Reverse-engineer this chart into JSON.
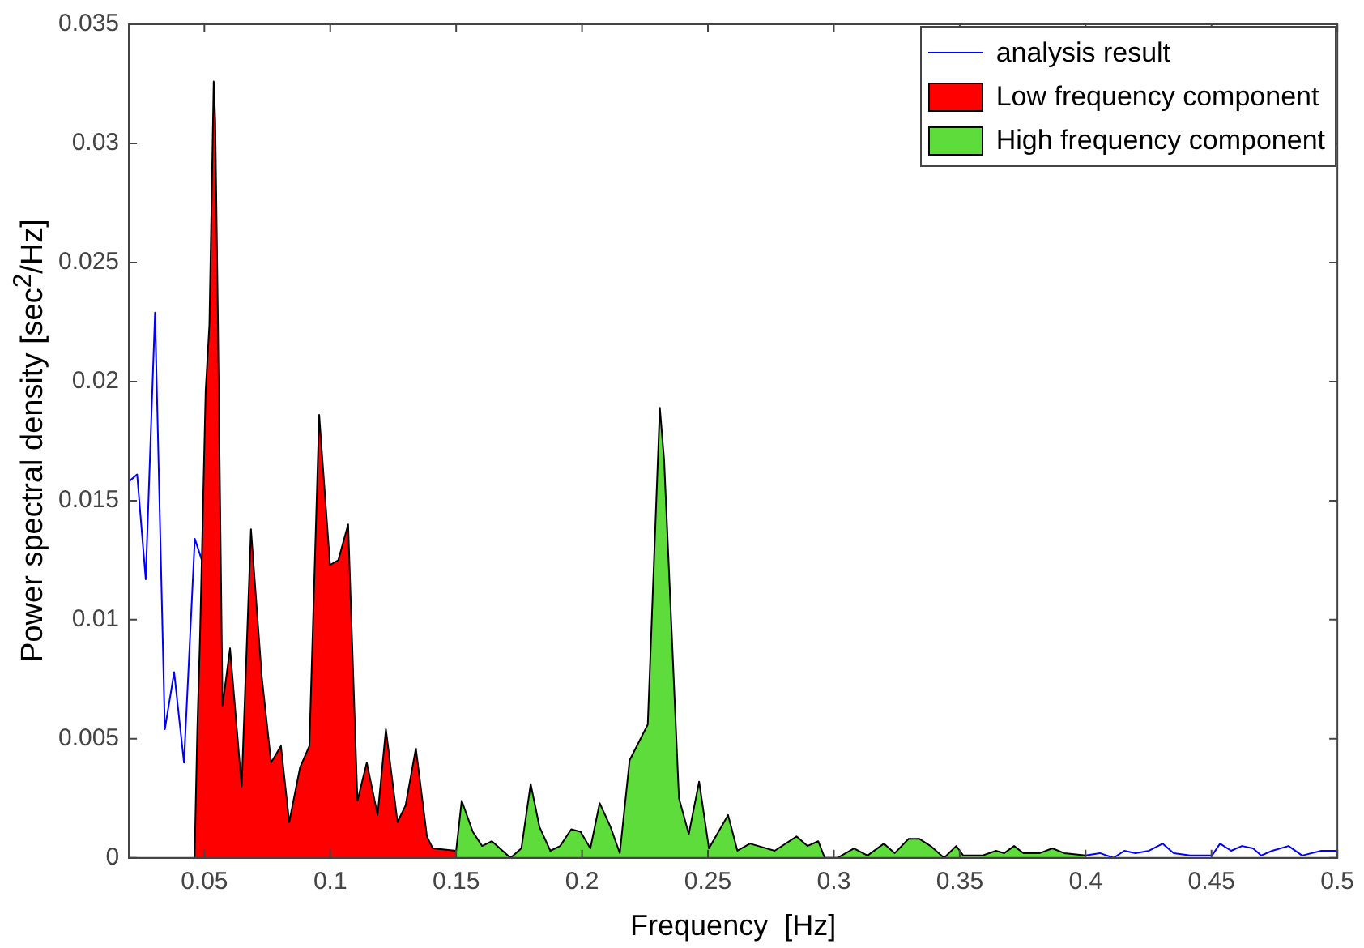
{
  "chart_data": {
    "type": "line",
    "xlabel": "Frequency  [Hz]",
    "ylabel": "Power spectral density  [sec$^{2}$/Hz]",
    "xlim": [
      0.02,
      0.5
    ],
    "xticks": [
      0.05,
      0.1,
      0.15,
      0.2,
      0.25,
      0.3,
      0.35,
      0.4,
      0.45,
      0.5
    ],
    "ylim": [
      0,
      0.035
    ],
    "yticks": [
      0,
      0.005,
      0.01,
      0.015,
      0.02,
      0.025,
      0.03,
      0.035
    ],
    "grid": false,
    "legend": "top right",
    "marker": "none",
    "line_style": "solid",
    "series": [
      {
        "name": "analysis result",
        "color": "#0000ff",
        "x": [
          0.02,
          0.0233,
          0.0267,
          0.0304,
          0.0343,
          0.038,
          0.0419,
          0.0462,
          0.049,
          0.0505,
          0.052,
          0.0537,
          0.0543,
          0.0554,
          0.0572,
          0.0602,
          0.0648,
          0.0685,
          0.0728,
          0.0765,
          0.0804,
          0.0837,
          0.088,
          0.0917,
          0.0956,
          0.0999,
          0.1032,
          0.1071,
          0.1108,
          0.1145,
          0.1188,
          0.1221,
          0.1267,
          0.1299,
          0.134,
          0.1384,
          0.1407,
          0.15,
          0.1522,
          0.1566,
          0.1603,
          0.1642,
          0.1716,
          0.1759,
          0.1796,
          0.1831,
          0.1874,
          0.1913,
          0.1957,
          0.1994,
          0.2033,
          0.207,
          0.2113,
          0.215,
          0.2189,
          0.2261,
          0.2309,
          0.2326,
          0.2385,
          0.2424,
          0.2465,
          0.2504,
          0.258,
          0.2617,
          0.2667,
          0.27,
          0.2765,
          0.2852,
          0.2895,
          0.2938,
          0.2964,
          0.3014,
          0.308,
          0.3134,
          0.3199,
          0.3242,
          0.3297,
          0.334,
          0.3384,
          0.3438,
          0.3486,
          0.3514,
          0.359,
          0.3644,
          0.3677,
          0.3716,
          0.3753,
          0.3818,
          0.3868,
          0.3915,
          0.4,
          0.4057,
          0.4111,
          0.4154,
          0.4198,
          0.4252,
          0.4306,
          0.435,
          0.4415,
          0.4502,
          0.4534,
          0.4578,
          0.4621,
          0.4665,
          0.4697,
          0.4741,
          0.4806,
          0.486,
          0.4936,
          0.5
        ],
        "values": [
          0.0158,
          0.0161,
          0.0117,
          0.0229,
          0.0054,
          0.0078,
          0.004,
          0.0134,
          0.0125,
          null,
          null,
          null,
          null,
          null,
          null,
          null,
          null,
          null,
          null,
          null,
          null,
          null,
          null,
          null,
          null,
          null,
          null,
          null,
          null,
          null,
          null,
          null,
          null,
          null,
          null,
          null,
          null,
          null,
          null,
          null,
          null,
          null,
          null,
          null,
          null,
          null,
          null,
          null,
          null,
          null,
          null,
          null,
          null,
          null,
          null,
          null,
          null,
          null,
          null,
          null,
          null,
          null,
          null,
          null,
          null,
          null,
          null,
          null,
          null,
          null,
          null,
          null,
          null,
          null,
          null,
          null,
          null,
          null,
          null,
          null,
          null,
          null,
          null,
          null,
          null,
          null,
          null,
          null,
          null,
          null,
          0.0001,
          0.0002,
          0,
          0.0003,
          0.0002,
          0.0003,
          0.0006,
          0.0002,
          0.0001,
          0.0001,
          0.0006,
          0.0003,
          0.0005,
          0.0004,
          0.0001,
          0.0003,
          0.0005,
          0.0001,
          0.0003,
          0.0003
        ]
      },
      {
        "name": "Low frequency component",
        "type": "area",
        "color": "#ff0000",
        "x": [
          0.0461,
          0.0472,
          0.0483,
          0.0505,
          0.052,
          0.0537,
          0.0543,
          0.0554,
          0.0572,
          0.0602,
          0.0648,
          0.0685,
          0.0728,
          0.0765,
          0.0804,
          0.0837,
          0.088,
          0.0917,
          0.0956,
          0.0999,
          0.1032,
          0.1071,
          0.1108,
          0.1145,
          0.1188,
          0.1221,
          0.1267,
          0.1299,
          0.134,
          0.1384,
          0.1407,
          0.15
        ],
        "values": [
          0,
          0.0054,
          0.0094,
          0.0196,
          0.0224,
          0.0326,
          0.031,
          0.0224,
          0.0064,
          0.0088,
          0.003,
          0.0138,
          0.0076,
          0.004,
          0.0047,
          0.0015,
          0.0038,
          0.0047,
          0.0186,
          0.0123,
          0.0125,
          0.014,
          0.0024,
          0.004,
          0.0018,
          0.0054,
          0.0015,
          0.0022,
          0.0046,
          0.0009,
          0.0004,
          0.0003
        ]
      },
      {
        "name": "High frequency component",
        "type": "area",
        "color": "#5ddc3c",
        "x": [
          0.15,
          0.1522,
          0.1566,
          0.1603,
          0.1642,
          0.1716,
          0.1759,
          0.1796,
          0.1831,
          0.1874,
          0.1913,
          0.1957,
          0.1994,
          0.2033,
          0.207,
          0.2113,
          0.215,
          0.2189,
          0.2261,
          0.2309,
          0.2326,
          0.2385,
          0.2424,
          0.2465,
          0.2504,
          0.258,
          0.2617,
          0.2667,
          0.27,
          0.2765,
          0.2852,
          0.2895,
          0.2938,
          0.2964,
          0.3014,
          0.308,
          0.3134,
          0.3199,
          0.3242,
          0.3297,
          0.334,
          0.3384,
          0.3438,
          0.3486,
          0.3514,
          0.359,
          0.3644,
          0.3677,
          0.3716,
          0.3753,
          0.3818,
          0.3868,
          0.3915,
          0.4
        ],
        "values": [
          0.0003,
          0.0024,
          0.0011,
          0.0005,
          0.0007,
          0,
          0.0004,
          0.0031,
          0.0013,
          0.0003,
          0.0005,
          0.0012,
          0.0011,
          0.0004,
          0.0023,
          0.0013,
          0.0002,
          0.0041,
          0.0056,
          0.0189,
          0.0167,
          0.0025,
          0.001,
          0.0032,
          0.0004,
          0.0018,
          0.0003,
          0.0006,
          0.0005,
          0.0003,
          0.0009,
          0.0005,
          0.0007,
          0,
          0,
          0.0004,
          0.0001,
          0.0006,
          0.0002,
          0.0008,
          0.0008,
          0.0005,
          0,
          0.0005,
          0.0001,
          0.0001,
          0.0003,
          0.0002,
          0.0005,
          0.0002,
          0.0002,
          0.0004,
          0.0002,
          0.0001
        ]
      }
    ]
  }
}
